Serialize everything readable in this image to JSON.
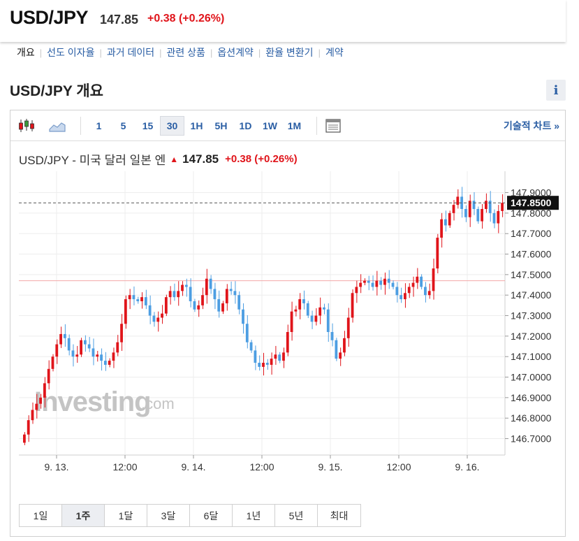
{
  "header": {
    "symbol": "USD/JPY",
    "price": "147.85",
    "change": "+0.38",
    "change_pct": "(+0.26%)"
  },
  "subnav": [
    "개요",
    "선도 이자율",
    "과거 데이터",
    "관련 상품",
    "옵션계약",
    "환율 변환기",
    "계약"
  ],
  "section_title": "USD/JPY 개요",
  "info_label": "i",
  "toolbar": {
    "intervals": [
      "1",
      "5",
      "15",
      "30",
      "1H",
      "5H",
      "1D",
      "1W",
      "1M"
    ],
    "active_interval": "30",
    "tech_link": "기술적 차트 »"
  },
  "chart_heading": {
    "name": "USD/JPY - 미국 달러 일본 엔",
    "price": "147.85",
    "change": "+0.38",
    "change_pct": "(+0.26%)"
  },
  "watermark": {
    "main": "Investing",
    "suffix": ".com"
  },
  "range_buttons": [
    "1일",
    "1주",
    "1달",
    "3달",
    "6달",
    "1년",
    "5년",
    "최대"
  ],
  "active_range": "1주",
  "colors": {
    "up": "#e0141a",
    "down": "#4d9ee2",
    "accent": "#2a5ea4"
  },
  "chart_data": {
    "type": "candlestick",
    "x_tick_labels": [
      "9. 13.",
      "12:00",
      "9. 14.",
      "12:00",
      "9. 15.",
      "12:00",
      "9. 16."
    ],
    "y_tick_labels": [
      "147.9000",
      "147.8000",
      "147.7000",
      "147.6000",
      "147.5000",
      "147.4000",
      "147.3000",
      "147.2000",
      "147.1000",
      "147.0000",
      "146.9000",
      "146.8000",
      "146.7000"
    ],
    "ylim": [
      146.62,
      147.97
    ],
    "current_price_label": "147.8500",
    "current_price": 147.85,
    "reference_line": 147.47,
    "closes": [
      146.72,
      146.79,
      146.84,
      146.87,
      146.9,
      146.97,
      147.04,
      147.1,
      147.16,
      147.21,
      147.19,
      147.13,
      147.1,
      147.11,
      147.18,
      147.16,
      147.14,
      147.1,
      147.11,
      147.08,
      147.06,
      147.08,
      147.12,
      147.17,
      147.26,
      147.38,
      147.4,
      147.38,
      147.37,
      147.39,
      147.35,
      147.3,
      147.27,
      147.29,
      147.31,
      147.39,
      147.42,
      147.39,
      147.42,
      147.45,
      147.44,
      147.37,
      147.33,
      147.35,
      147.4,
      147.48,
      147.43,
      147.38,
      147.32,
      147.36,
      147.43,
      147.42,
      147.4,
      147.33,
      147.26,
      147.17,
      147.13,
      147.07,
      147.05,
      147.07,
      147.06,
      147.09,
      147.11,
      147.08,
      147.12,
      147.22,
      147.32,
      147.33,
      147.38,
      147.36,
      147.3,
      147.27,
      147.3,
      147.34,
      147.33,
      147.22,
      147.18,
      147.09,
      147.12,
      147.19,
      147.29,
      147.41,
      147.44,
      147.46,
      147.47,
      147.46,
      147.44,
      147.47,
      147.45,
      147.48,
      147.46,
      147.44,
      147.4,
      147.38,
      147.41,
      147.44,
      147.46,
      147.49,
      147.44,
      147.4,
      147.42,
      147.53,
      147.68,
      147.77,
      147.74,
      147.8,
      147.84,
      147.88,
      147.82,
      147.78,
      147.86,
      147.82,
      147.76,
      147.82,
      147.86,
      147.8,
      147.75,
      147.81,
      147.85
    ]
  }
}
